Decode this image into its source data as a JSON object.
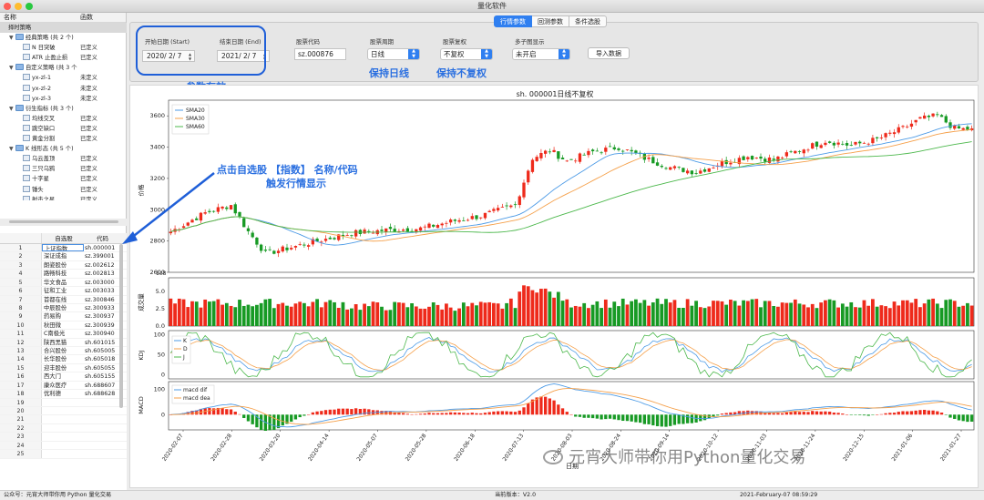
{
  "window": {
    "title": "量化软件"
  },
  "tabs": [
    "行情参数",
    "回测参数",
    "条件选股"
  ],
  "tree": {
    "col_name": "名称",
    "col_func": "函数",
    "rows": [
      {
        "indent": 0,
        "arrow": "",
        "icon": "none",
        "label": "择时策略",
        "status": "",
        "selected": true
      },
      {
        "indent": 1,
        "arrow": "▼",
        "icon": "folder",
        "label": "经典策略 (共 2 个)",
        "status": ""
      },
      {
        "indent": 2,
        "arrow": "",
        "icon": "file",
        "label": "N 日突破",
        "status": "已定义"
      },
      {
        "indent": 2,
        "arrow": "",
        "icon": "file",
        "label": "ATR 止盈止损",
        "status": "已定义"
      },
      {
        "indent": 1,
        "arrow": "▼",
        "icon": "folder",
        "label": "自定义策略 (共 3 个",
        "status": ""
      },
      {
        "indent": 2,
        "arrow": "",
        "icon": "file",
        "label": "yx-zl-1",
        "status": "未定义"
      },
      {
        "indent": 2,
        "arrow": "",
        "icon": "file",
        "label": "yx-zl-2",
        "status": "未定义"
      },
      {
        "indent": 2,
        "arrow": "",
        "icon": "file",
        "label": "yx-zl-3",
        "status": "未定义"
      },
      {
        "indent": 1,
        "arrow": "▼",
        "icon": "folder",
        "label": "衍生指标 (共 3 个)",
        "status": ""
      },
      {
        "indent": 2,
        "arrow": "",
        "icon": "file",
        "label": "均线交叉",
        "status": "已定义"
      },
      {
        "indent": 2,
        "arrow": "",
        "icon": "file",
        "label": "跳空缺口",
        "status": "已定义"
      },
      {
        "indent": 2,
        "arrow": "",
        "icon": "file",
        "label": "黄金分割",
        "status": "已定义"
      },
      {
        "indent": 1,
        "arrow": "▼",
        "icon": "folder",
        "label": "K 线形态 (共 5 个)",
        "status": ""
      },
      {
        "indent": 2,
        "arrow": "",
        "icon": "file",
        "label": "乌云盖顶",
        "status": "已定义"
      },
      {
        "indent": 2,
        "arrow": "",
        "icon": "file",
        "label": "三只乌鸦",
        "status": "已定义"
      },
      {
        "indent": 2,
        "arrow": "",
        "icon": "file",
        "label": "十字星",
        "status": "已定义"
      },
      {
        "indent": 2,
        "arrow": "",
        "icon": "file",
        "label": "锤头",
        "status": "已定义"
      },
      {
        "indent": 2,
        "arrow": "",
        "icon": "file",
        "label": "射击之星",
        "status": "已定义"
      }
    ]
  },
  "stock_table": {
    "headers": [
      "",
      "自选股",
      "代码"
    ],
    "rows": [
      [
        "1",
        "上证指数",
        "sh.000001"
      ],
      [
        "2",
        "深证成指",
        "sz.399001"
      ],
      [
        "3",
        "朗姿股份",
        "sz.002612"
      ],
      [
        "4",
        "路畅科技",
        "sz.002813"
      ],
      [
        "5",
        "华文食品",
        "sz.003000"
      ],
      [
        "6",
        "征和工业",
        "sz.003033"
      ],
      [
        "7",
        "首都在线",
        "sz.300846"
      ],
      [
        "8",
        "中辰股份",
        "sz.300933"
      ],
      [
        "9",
        "药易购",
        "sz.300937"
      ],
      [
        "10",
        "秋田微",
        "sz.300939"
      ],
      [
        "11",
        "C南极光",
        "sz.300940"
      ],
      [
        "12",
        "陕西黑猫",
        "sh.601015"
      ],
      [
        "13",
        "合兴股份",
        "sh.605005"
      ],
      [
        "14",
        "长华股份",
        "sh.605018"
      ],
      [
        "15",
        "迎丰股份",
        "sh.605055"
      ],
      [
        "16",
        "西大门",
        "sh.605155"
      ],
      [
        "17",
        "康众医疗",
        "sh.688607"
      ],
      [
        "18",
        "优利德",
        "sh.688628"
      ],
      [
        "19",
        "",
        ""
      ],
      [
        "20",
        "",
        ""
      ],
      [
        "21",
        "",
        ""
      ],
      [
        "22",
        "",
        ""
      ],
      [
        "23",
        "",
        ""
      ],
      [
        "24",
        "",
        ""
      ],
      [
        "25",
        "",
        ""
      ]
    ]
  },
  "params": {
    "start_label": "开始日期 (Start)",
    "start_value": "2020/ 2/ 7",
    "end_label": "结束日期 (End)",
    "end_value": "2021/ 2/ 7",
    "code_label": "股票代码",
    "code_value": "sz.000876",
    "period_label": "股票周期",
    "period_value": "日线",
    "adjust_label": "股票复权",
    "adjust_value": "不复权",
    "multi_label": "多子图显示",
    "multi_value": "未开启",
    "import_button": "导入数据"
  },
  "annotations": {
    "params_valid": "参数有效",
    "keep_daily": "保持日线",
    "keep_no_adjust": "保持不复权",
    "click_hint_1": "点击自选股 【指数】 名称/代码",
    "click_hint_2": "触发行情显示"
  },
  "colors": {
    "up": "#ee2a1b",
    "down": "#179a24",
    "sma20": "#4d9be6",
    "sma30": "#f5a04a",
    "sma60": "#4cb84c",
    "accent": "#2f7ff0"
  },
  "chart_data": {
    "type": "candlestick",
    "title": "sh. 000001日线不复权",
    "price_axis_label": "价格",
    "price_ticks": [
      "2600",
      "2800",
      "3000",
      "3200",
      "3400",
      "3600"
    ],
    "price_ylim": [
      2600,
      3700
    ],
    "price_series": [
      "SMA20",
      "SMA30",
      "SMA60"
    ],
    "close_keypoints": [
      [
        0,
        2860
      ],
      [
        8,
        2980
      ],
      [
        14,
        3030
      ],
      [
        18,
        2860
      ],
      [
        22,
        2720
      ],
      [
        28,
        2760
      ],
      [
        34,
        2800
      ],
      [
        42,
        2850
      ],
      [
        50,
        2870
      ],
      [
        58,
        2880
      ],
      [
        66,
        2930
      ],
      [
        72,
        2960
      ],
      [
        80,
        3030
      ],
      [
        84,
        3330
      ],
      [
        88,
        3380
      ],
      [
        92,
        3310
      ],
      [
        98,
        3370
      ],
      [
        104,
        3400
      ],
      [
        110,
        3330
      ],
      [
        116,
        3270
      ],
      [
        122,
        3240
      ],
      [
        128,
        3300
      ],
      [
        134,
        3340
      ],
      [
        140,
        3320
      ],
      [
        146,
        3380
      ],
      [
        152,
        3440
      ],
      [
        158,
        3410
      ],
      [
        164,
        3450
      ],
      [
        170,
        3520
      ],
      [
        174,
        3580
      ],
      [
        178,
        3600
      ],
      [
        182,
        3520
      ],
      [
        186,
        3510
      ]
    ],
    "volume_axis_label": "成交量",
    "volume_ticks": [
      "0.0",
      "2.5",
      "5.0"
    ],
    "volume_unit": "1e8",
    "kdj_axis_label": "KDJ",
    "kdj_ticks": [
      "0",
      "50",
      "100"
    ],
    "kdj_series": [
      "K",
      "D",
      "J"
    ],
    "macd_axis_label": "MACD",
    "macd_ticks": [
      "0",
      "100"
    ],
    "macd_series": [
      "macd dif",
      "macd dea"
    ],
    "x_ticks": [
      "2020-02-07",
      "2020-02-28",
      "2020-03-20",
      "2020-04-14",
      "2020-05-07",
      "2020-05-28",
      "2020-06-18",
      "2020-07-13",
      "2020-08-03",
      "2020-08-24",
      "2020-09-14",
      "2020-10-12",
      "2020-11-03",
      "2020-11-24",
      "2020-12-15",
      "2021-01-06",
      "2021-01-27"
    ],
    "x_label": "日期"
  },
  "watermark": "元宵大师带你用Python量化交易",
  "statusbar": {
    "left": "公众号：元宵大师带你用 Python 量化交易",
    "version": "当前版本：V2.0",
    "datetime": "2021-February-07 08:59:29"
  }
}
